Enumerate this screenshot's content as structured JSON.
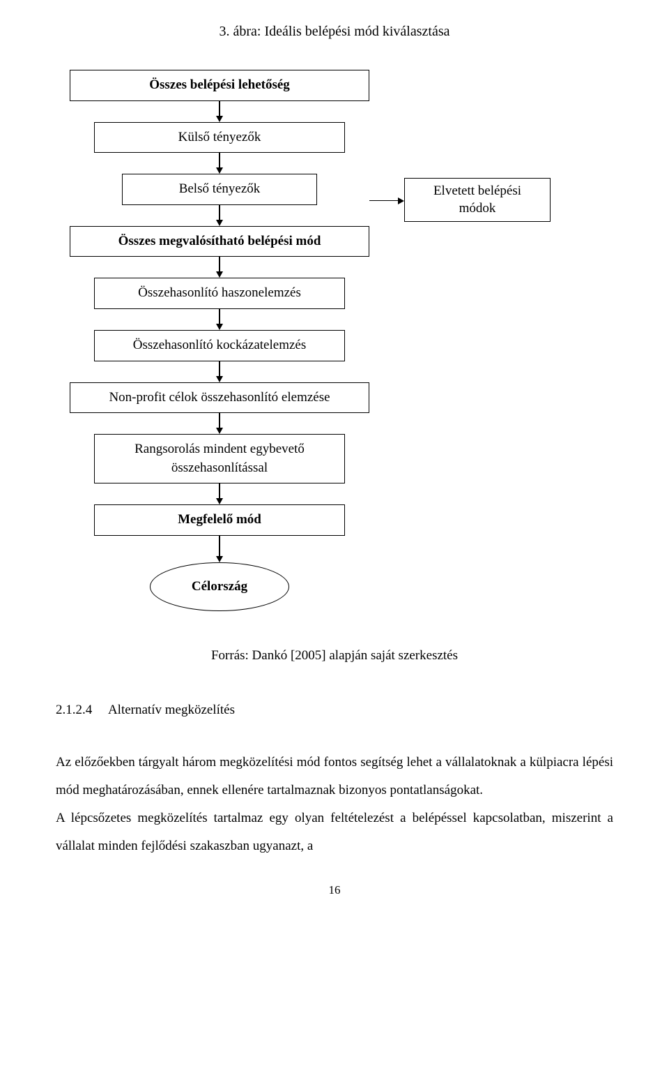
{
  "title": "3. ábra: Ideális belépési mód kiválasztása",
  "flowchart": {
    "type": "flowchart",
    "background_color": "#ffffff",
    "border_color": "#000000",
    "text_color": "#000000",
    "font_family": "Times New Roman",
    "font_size_pt": 14,
    "nodes": {
      "n1": {
        "label": "Összes belépési lehetőség",
        "bold": true,
        "width_class": "w-wide"
      },
      "n2": {
        "label": "Külső tényezők",
        "bold": false,
        "width_class": "w-med"
      },
      "n3": {
        "label": "Belső tényezők",
        "bold": false,
        "width_class": "w-nar"
      },
      "n4": {
        "label": "Összes megvalósítható belépési mód",
        "bold": true,
        "width_class": "w-wide"
      },
      "n5": {
        "label": "Összehasonlító haszonelemzés",
        "bold": false,
        "width_class": "w-med"
      },
      "n6": {
        "label": "Összehasonlító kockázatelemzés",
        "bold": false,
        "width_class": "w-med"
      },
      "n7": {
        "label": "Non-profit célok összehasonlító elemzése",
        "bold": false,
        "width_class": "w-wide"
      },
      "n8": {
        "label": "Rangsorolás mindent egybevető összehasonlítással",
        "bold": false,
        "width_class": "w-med"
      },
      "n9": {
        "label": "Megfelelő mód",
        "bold": true,
        "width_class": "w-med"
      },
      "n10": {
        "label": "Célország",
        "bold": true,
        "shape": "ellipse"
      },
      "side": {
        "line1": "Elvetett belépési",
        "line2": "módok"
      }
    },
    "edges": [
      {
        "from": "n1",
        "to": "n2",
        "style": "arrow-down"
      },
      {
        "from": "n2",
        "to": "n3",
        "style": "arrow-down"
      },
      {
        "from": "n3",
        "to": "n4",
        "style": "arrow-down"
      },
      {
        "from": "n4",
        "to": "n5",
        "style": "arrow-down"
      },
      {
        "from": "n5",
        "to": "n6",
        "style": "arrow-down"
      },
      {
        "from": "n6",
        "to": "n7",
        "style": "arrow-down"
      },
      {
        "from": "n7",
        "to": "n8",
        "style": "arrow-down"
      },
      {
        "from": "n8",
        "to": "n9",
        "style": "arrow-down"
      },
      {
        "from": "n9",
        "to": "n10",
        "style": "arrow-down"
      },
      {
        "from": "n4",
        "to": "side",
        "style": "arrow-right"
      }
    ]
  },
  "source": "Forrás: Dankó [2005] alapján saját szerkesztés",
  "section": {
    "number": "2.1.2.4",
    "title": "Alternatív megközelítés"
  },
  "paragraph": "Az előzőekben tárgyalt három megközelítési mód fontos segítség lehet a vállalatoknak a külpiacra lépési mód meghatározásában, ennek ellenére tartalmaznak bizonyos pontatlanságokat.",
  "paragraph2": "A lépcsőzetes megközelítés tartalmaz egy olyan feltételezést a belépéssel kapcsolatban, miszerint a vállalat minden fejlődési szakaszban ugyanazt, a",
  "page_number": "16"
}
